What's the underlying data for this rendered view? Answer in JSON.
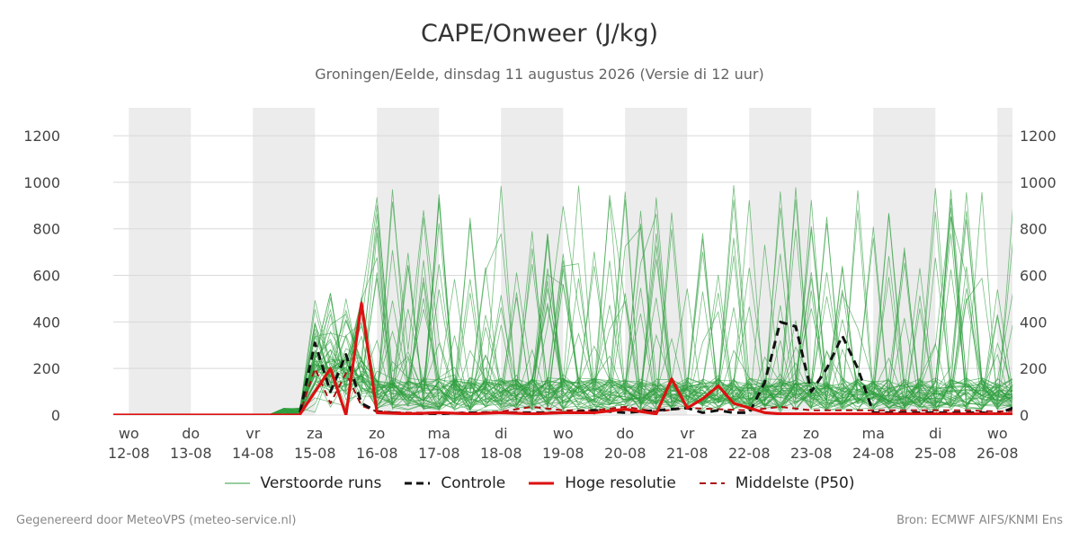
{
  "header": {
    "title": "CAPE/Onweer (J/kg)",
    "subtitle": "Groningen/Eelde, dinsdag 11 augustus 2026 (Versie di 12 uur)"
  },
  "footer": {
    "left": "Gegenereerd door MeteoVPS (meteo-service.nl)",
    "right": "Bron: ECMWF AIFS/KNMI Ens"
  },
  "legend": {
    "ensemble": "Verstoorde runs",
    "control": "Controle",
    "hires": "Hoge resolutie",
    "median": "Middelste (P50)"
  },
  "colors": {
    "ensemble": "#2e9e3e",
    "control": "#111111",
    "hires": "#dd1111",
    "median": "#aa1111",
    "shade": "#ececec",
    "grid": "#d9d9d9"
  },
  "chart_data": {
    "type": "line",
    "title": "CAPE/Onweer (J/kg)",
    "ylim": [
      0,
      1320
    ],
    "yticks": [
      0,
      200,
      400,
      600,
      800,
      1000,
      1200
    ],
    "x_unit": "days after 12-08",
    "xlim": [
      -0.25,
      14.5
    ],
    "xticks": [
      {
        "day": "wo",
        "date": "12-08",
        "x": 0
      },
      {
        "day": "do",
        "date": "13-08",
        "x": 1
      },
      {
        "day": "vr",
        "date": "14-08",
        "x": 2
      },
      {
        "day": "za",
        "date": "15-08",
        "x": 3
      },
      {
        "day": "zo",
        "date": "16-08",
        "x": 4
      },
      {
        "day": "ma",
        "date": "17-08",
        "x": 5
      },
      {
        "day": "di",
        "date": "18-08",
        "x": 6
      },
      {
        "day": "wo",
        "date": "19-08",
        "x": 7
      },
      {
        "day": "do",
        "date": "20-08",
        "x": 8
      },
      {
        "day": "vr",
        "date": "21-08",
        "x": 9
      },
      {
        "day": "za",
        "date": "22-08",
        "x": 10
      },
      {
        "day": "zo",
        "date": "23-08",
        "x": 11
      },
      {
        "day": "ma",
        "date": "24-08",
        "x": 12
      },
      {
        "day": "di",
        "date": "25-08",
        "x": 13
      },
      {
        "day": "wo",
        "date": "26-08",
        "x": 14
      }
    ],
    "shaded_days": [
      0,
      2,
      4,
      6,
      8,
      10,
      12,
      14
    ],
    "grid": true,
    "legend_position": "bottom",
    "ensemble_members": 50,
    "series": [
      {
        "name": "Controle",
        "style": "dashed",
        "x": [
          -0.25,
          0.5,
          1,
          1.5,
          2,
          2.5,
          2.75,
          3.0,
          3.25,
          3.5,
          3.75,
          4.0,
          4.5,
          5,
          5.5,
          6,
          6.5,
          7,
          7.5,
          8,
          8.5,
          9,
          9.25,
          9.5,
          9.75,
          10,
          10.25,
          10.5,
          10.75,
          11.0,
          11.25,
          11.5,
          11.75,
          12.0,
          12.25,
          12.5,
          12.75,
          13,
          13.25,
          13.5,
          13.75,
          14,
          14.25,
          14.5
        ],
        "y": [
          0,
          0,
          0,
          0,
          0,
          0,
          0,
          310,
          100,
          260,
          50,
          15,
          5,
          5,
          10,
          10,
          10,
          10,
          20,
          10,
          20,
          30,
          10,
          20,
          10,
          10,
          140,
          400,
          380,
          100,
          200,
          340,
          200,
          10,
          10,
          10,
          10,
          10,
          10,
          10,
          10,
          5,
          30,
          10
        ]
      },
      {
        "name": "Hoge resolutie",
        "style": "solid",
        "x": [
          -0.25,
          0.5,
          1,
          1.5,
          2,
          2.5,
          2.75,
          3.0,
          3.25,
          3.5,
          3.75,
          4.0,
          4.5,
          5,
          5.5,
          6,
          6.5,
          7,
          7.5,
          8,
          8.5,
          8.75,
          9.0,
          9.25,
          9.5,
          9.75,
          10,
          10.25,
          10.5,
          10.75,
          11.0,
          11.25,
          11.5,
          11.75,
          12.0,
          12.25,
          12.5,
          12.75,
          13,
          13.25,
          13.5,
          13.75,
          14,
          14.25,
          14.5
        ],
        "y": [
          0,
          0,
          0,
          0,
          0,
          0,
          0,
          100,
          200,
          0,
          480,
          10,
          5,
          10,
          5,
          10,
          5,
          10,
          10,
          25,
          5,
          155,
          30,
          70,
          125,
          50,
          30,
          10,
          5,
          5,
          5,
          5,
          5,
          5,
          5,
          5,
          5,
          5,
          5,
          5,
          5,
          5,
          5,
          5,
          5
        ]
      },
      {
        "name": "Middelste (P50)",
        "style": "dashed",
        "x": [
          -0.25,
          0.5,
          1,
          1.5,
          2,
          2.5,
          2.75,
          3.0,
          3.25,
          3.5,
          3.75,
          4.0,
          4.5,
          5,
          5.5,
          6,
          6.5,
          7,
          7.5,
          8,
          8.5,
          9,
          9.5,
          10,
          10.5,
          11,
          11.5,
          12,
          12.5,
          13,
          13.5,
          14,
          14.5
        ],
        "y": [
          0,
          0,
          0,
          0,
          0,
          0,
          0,
          200,
          50,
          180,
          40,
          15,
          10,
          10,
          10,
          15,
          35,
          20,
          20,
          35,
          15,
          30,
          25,
          20,
          35,
          20,
          20,
          20,
          20,
          20,
          20,
          15,
          20
        ]
      }
    ]
  }
}
